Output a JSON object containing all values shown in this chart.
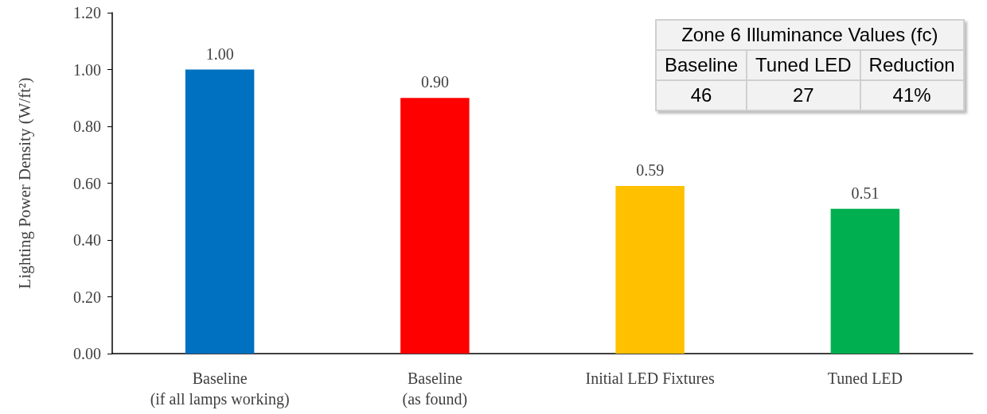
{
  "chart_data": {
    "type": "bar",
    "ylabel": "Lighting Power Density (W/ft²)",
    "categories": [
      "Baseline\n(if all lamps working)",
      "Baseline\n(as found)",
      "Initial LED Fixtures",
      "Tuned LED"
    ],
    "values": [
      1.0,
      0.9,
      0.59,
      0.51
    ],
    "colors": [
      "#0070c0",
      "#ff0000",
      "#ffc000",
      "#00b050"
    ],
    "value_labels": [
      "1.00",
      "0.90",
      "0.59",
      "0.51"
    ],
    "ylim": [
      0,
      1.2
    ],
    "yticks": [
      {
        "value": 0,
        "label": "0.00"
      },
      {
        "value": 0.2,
        "label": "0.20"
      },
      {
        "value": 0.4,
        "label": "0.40"
      },
      {
        "value": 0.6,
        "label": "0.60"
      },
      {
        "value": 0.8,
        "label": "0.80"
      },
      {
        "value": 1.0,
        "label": "1.00"
      },
      {
        "value": 1.2,
        "label": "1.20"
      }
    ],
    "grid": false,
    "annotations": [
      "Zone 6 Illuminance Values (fc)",
      "Baseline",
      "Tuned LED",
      "Reduction",
      "46",
      "27",
      "41%"
    ]
  }
}
